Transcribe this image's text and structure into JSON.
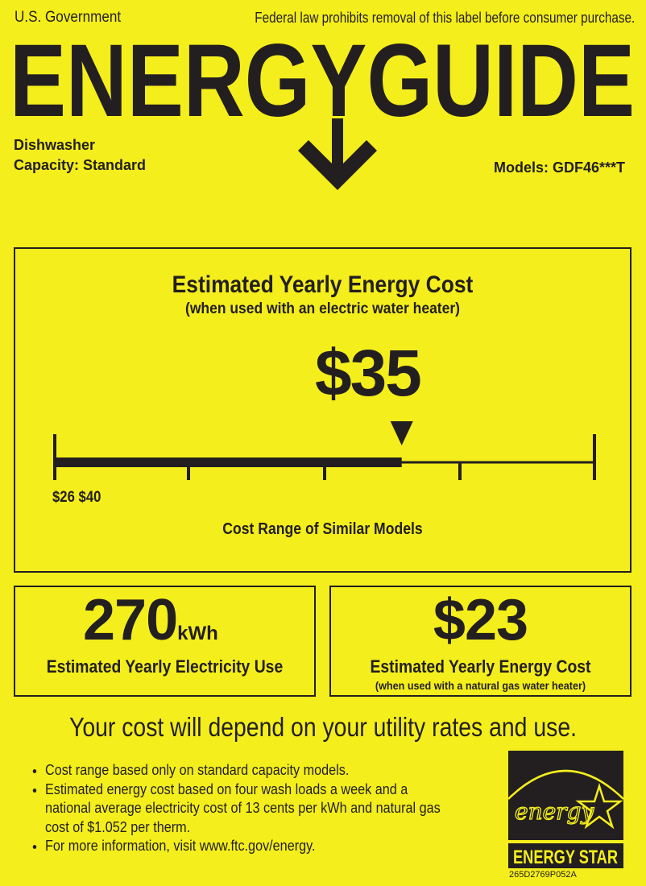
{
  "header": {
    "government": "U.S. Government",
    "notice": "Federal law prohibits removal of this label before consumer purchase.",
    "title": "ENERGYGUIDE"
  },
  "product": {
    "type": "Dishwasher",
    "capacity": "Capacity: Standard",
    "models": "Models: GDF46***T"
  },
  "main_cost": {
    "title": "Estimated Yearly Energy Cost",
    "subtitle": "(when used with an electric water heater)",
    "value": "$35",
    "value_number": 35,
    "range_min": 26,
    "range_max": 40,
    "range_label": "$26 $40",
    "range_caption": "Cost Range of Similar Models"
  },
  "electricity": {
    "value": "270",
    "unit": "kWh",
    "caption": "Estimated Yearly Electricity Use"
  },
  "gas_cost": {
    "value": "$23",
    "caption": "Estimated Yearly Energy Cost",
    "subcaption": "(when used with a natural gas water heater)"
  },
  "disclaimer": "Your cost will depend on your utility rates and use.",
  "bullets": [
    "Cost range based only on standard capacity models.",
    "Estimated energy cost based on four wash loads a week and a national average electricity cost of 13 cents per kWh and natural gas cost of $1.052 per therm.",
    "For more information, visit www.ftc.gov/energy."
  ],
  "energy_star": {
    "script": "energy",
    "label": "ENERGY STAR"
  },
  "label_code": "265D2769P052A",
  "colors": {
    "background": "#f4ee1c",
    "ink": "#231f20"
  }
}
